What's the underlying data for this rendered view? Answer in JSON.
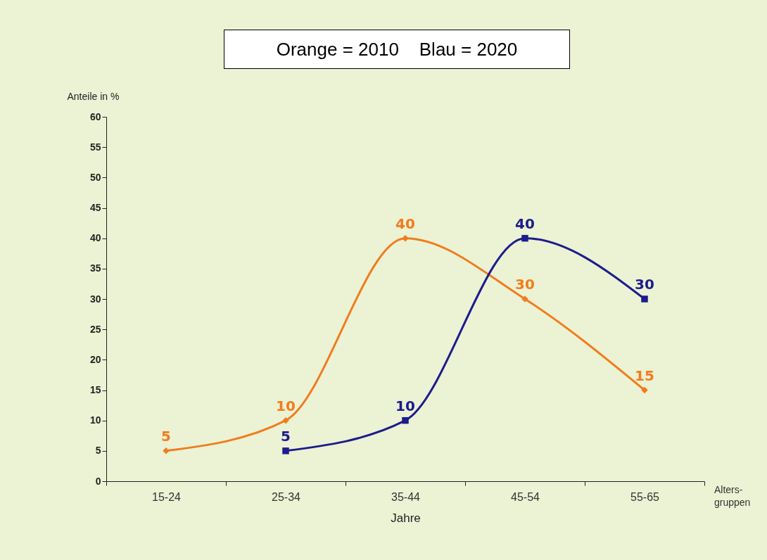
{
  "chart_data": {
    "type": "line",
    "ylabel": "Anteile in %",
    "xlabel": "Jahre",
    "categories": [
      "15-24",
      "25-34",
      "35-44",
      "45-54",
      "55-65"
    ],
    "series": [
      {
        "color": "#f07d1e",
        "marker": "diamond",
        "values": [
          5,
          10,
          40,
          30,
          15
        ]
      },
      {
        "color": "#1c1c8c",
        "marker": "square",
        "values": [
          null,
          5,
          10,
          40,
          30
        ]
      }
    ],
    "ylim": [
      0,
      60
    ],
    "yticks": [
      0,
      5,
      10,
      15,
      20,
      25,
      30,
      35,
      40,
      45,
      50,
      55,
      60
    ],
    "grid": false,
    "data_labels": true,
    "line_style": "solid",
    "annotations": [
      "Orange = 2010    Blau = 2020",
      "Alters-\ngruppen"
    ]
  }
}
